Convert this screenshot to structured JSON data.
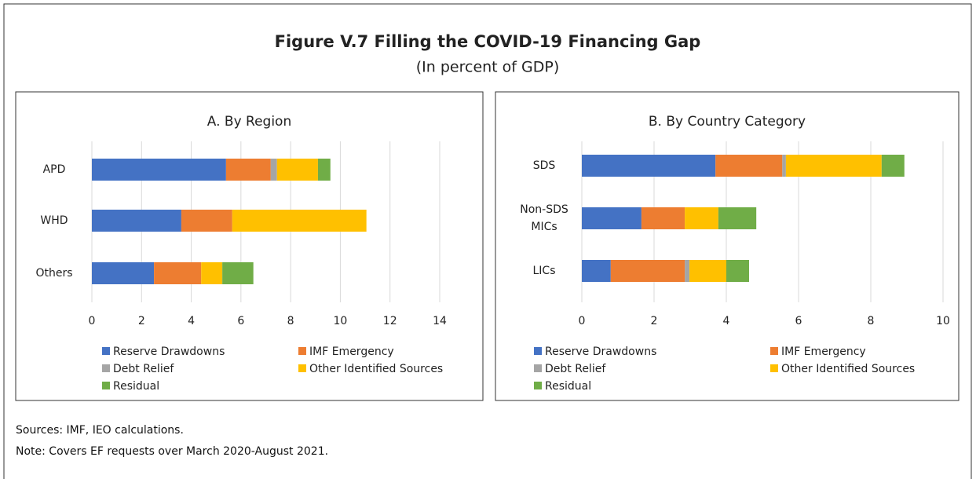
{
  "title": "Figure V.7 Filling the COVID-19 Financing Gap",
  "subtitle": "(In percent of GDP)",
  "sources": "Sources: IMF, IEO calculations.",
  "note": "Note: Covers EF requests over March 2020-August 2021.",
  "chart_data": [
    {
      "type": "bar",
      "orientation": "horizontal",
      "stacked": true,
      "title": "A. By Region",
      "categories": [
        "APD",
        "WHD",
        "Others"
      ],
      "series": [
        {
          "name": "Reserve Drawdowns",
          "color": "#4472c4",
          "values": [
            5.4,
            3.6,
            2.5
          ]
        },
        {
          "name": "IMF Emergency",
          "color": "#ed7d31",
          "values": [
            1.8,
            2.05,
            1.9
          ]
        },
        {
          "name": "Debt Relief",
          "color": "#a5a5a5",
          "values": [
            0.25,
            0,
            0
          ]
        },
        {
          "name": "Other Identified Sources",
          "color": "#ffc000",
          "values": [
            1.65,
            5.4,
            0.85
          ]
        },
        {
          "name": "Residual",
          "color": "#70ad47",
          "values": [
            0.5,
            0,
            1.25
          ]
        }
      ],
      "xlim": [
        0,
        14
      ],
      "xticks": [
        0,
        2,
        4,
        6,
        8,
        10,
        12,
        14
      ],
      "grid": true,
      "legend": "bottom"
    },
    {
      "type": "bar",
      "orientation": "horizontal",
      "stacked": true,
      "title": "B. By Country Category",
      "categories": [
        "SDS",
        "Non-SDS MICs",
        "LICs"
      ],
      "series": [
        {
          "name": "Reserve Drawdowns",
          "color": "#4472c4",
          "values": [
            3.7,
            1.65,
            0.8
          ]
        },
        {
          "name": "IMF Emergency",
          "color": "#ed7d31",
          "values": [
            1.85,
            1.2,
            2.05
          ]
        },
        {
          "name": "Debt Relief",
          "color": "#a5a5a5",
          "values": [
            0.1,
            0,
            0.13
          ]
        },
        {
          "name": "Other Identified Sources",
          "color": "#ffc000",
          "values": [
            2.65,
            0.93,
            1.02
          ]
        },
        {
          "name": "Residual",
          "color": "#70ad47",
          "values": [
            0.63,
            1.05,
            0.63
          ]
        }
      ],
      "xlim": [
        0,
        10
      ],
      "xticks": [
        0,
        2,
        4,
        6,
        8,
        10
      ],
      "grid": true,
      "legend": "bottom"
    }
  ]
}
